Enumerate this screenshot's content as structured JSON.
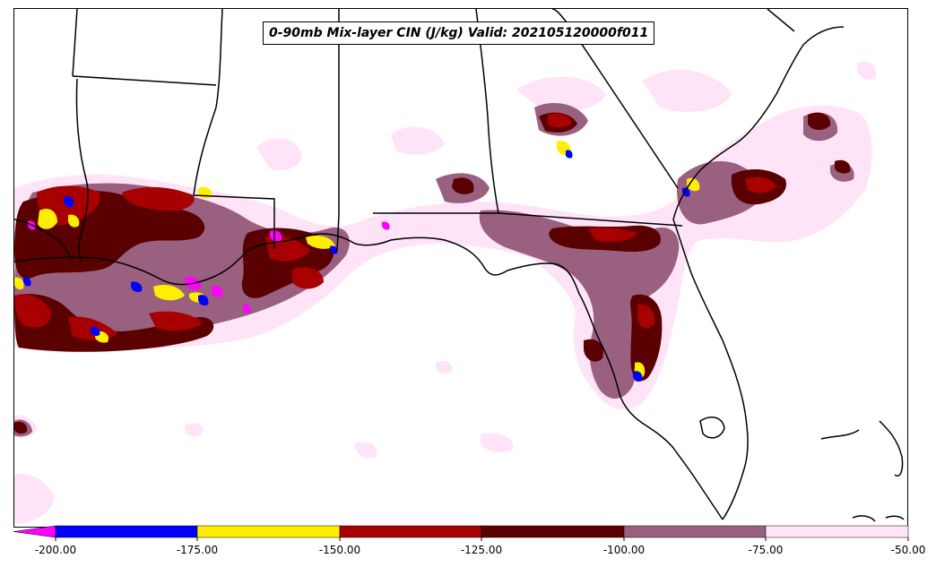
{
  "map": {
    "title": "0-90mb Mix-layer CIN (J/kg) Valid: 202105120000f011",
    "region": "US Gulf Coast / Florida"
  },
  "legend": {
    "ticks": [
      "-200.00",
      "-175.00",
      "-150.00",
      "-125.00",
      "-100.00",
      "-75.00",
      "-50.00"
    ],
    "bins": [
      {
        "range": "< -200",
        "color": "#ff00ff"
      },
      {
        "range": "-200 to -175",
        "color": "#0000ff"
      },
      {
        "range": "-175 to -150",
        "color": "#ffee00"
      },
      {
        "range": "-150 to -125",
        "color": "#a80000"
      },
      {
        "range": "-125 to -100",
        "color": "#5a0000"
      },
      {
        "range": "-100 to -75",
        "color": "#9a6080"
      },
      {
        "range": "-75 to -50",
        "color": "#ffe4f8"
      }
    ]
  }
}
